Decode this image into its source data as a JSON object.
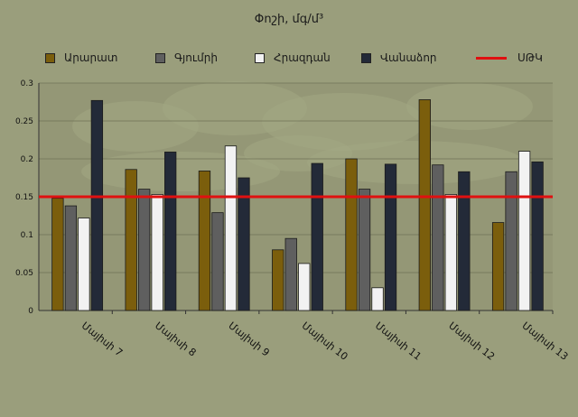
{
  "chart_data": {
    "type": "bar",
    "title": "Փոշի, մգ/մ³",
    "categories": [
      "Մայիսի 7",
      "Մայիսի 8",
      "Մայիսի 9",
      "Մայիսի 10",
      "Մայիսի 11",
      "Մայիսի 12",
      "Մայիսի 13"
    ],
    "series": [
      {
        "name": "Արարատ",
        "color": "#7b5e0c",
        "values": [
          0.148,
          0.186,
          0.184,
          0.08,
          0.2,
          0.278,
          0.116
        ]
      },
      {
        "name": "Գյումրի",
        "color": "#5f5f5f",
        "values": [
          0.138,
          0.16,
          0.129,
          0.095,
          0.16,
          0.192,
          0.183
        ]
      },
      {
        "name": "Հրազդան",
        "color": "#f2f2f2",
        "values": [
          0.122,
          0.153,
          0.217,
          0.062,
          0.03,
          0.153,
          0.21
        ]
      },
      {
        "name": "Վանաձոր",
        "color": "#232a38",
        "values": [
          0.277,
          0.209,
          0.175,
          0.194,
          0.193,
          0.183,
          0.196
        ]
      }
    ],
    "threshold": {
      "name": "ՍԹԿ",
      "value": 0.15,
      "color": "#e01010"
    },
    "ylim": [
      0,
      0.3
    ],
    "yticks": [
      "0",
      "0.05",
      "0.1",
      "0.15",
      "0.2",
      "0.25",
      "0.3"
    ],
    "xlabel": "",
    "ylabel": "",
    "grid": true,
    "legend_position": "top"
  }
}
